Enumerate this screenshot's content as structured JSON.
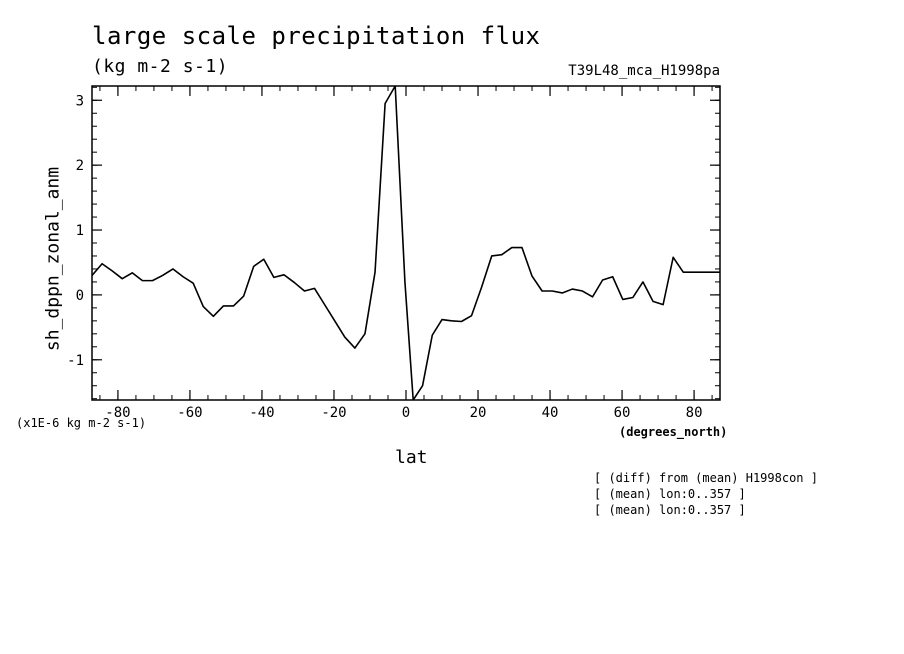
{
  "chart_data": {
    "type": "line",
    "title": "large scale precipitation flux",
    "subtitle": "(kg m-2 s-1)",
    "run_id": "T39L48_mca_H1998pa",
    "xlabel": "lat",
    "x_unit_label": "(degrees_north)",
    "ylabel": "sh_dppn_zonal_anm",
    "y_scale_label": "(x1E-6 kg m-2 s-1)",
    "xlim": [
      -87.2,
      87.2
    ],
    "ylim": [
      -1.62,
      3.22
    ],
    "x_ticks": [
      -80,
      -60,
      -40,
      -20,
      0,
      20,
      40,
      60,
      80
    ],
    "x_tick_labels": [
      "-80",
      "-60",
      "-40",
      "-20",
      "0",
      "20",
      "40",
      "60",
      "80"
    ],
    "y_ticks": [
      -1,
      0,
      1,
      2,
      3
    ],
    "y_tick_labels": [
      "-1",
      "0",
      "1",
      "2",
      "3"
    ],
    "x_minor_step": 5,
    "y_minor_step": 0.2,
    "grid": false,
    "series": [
      {
        "x": [
          -87.2,
          -84.4,
          -81.6,
          -78.8,
          -76.0,
          -73.2,
          -70.4,
          -67.6,
          -64.7,
          -61.9,
          -59.1,
          -56.3,
          -53.5,
          -50.7,
          -47.9,
          -45.1,
          -42.3,
          -39.5,
          -36.7,
          -33.9,
          -31.0,
          -28.2,
          -25.4,
          -22.6,
          -19.8,
          -17.0,
          -14.2,
          -11.4,
          -8.6,
          -5.8,
          -3.0,
          -0.3,
          2.0,
          4.6,
          7.3,
          10.0,
          12.6,
          15.4,
          18.2,
          21.0,
          23.8,
          26.6,
          29.4,
          32.2,
          35.0,
          37.8,
          40.6,
          43.4,
          46.2,
          49.0,
          51.8,
          54.6,
          57.4,
          60.2,
          63.0,
          65.8,
          68.6,
          71.4,
          74.2,
          77.0,
          79.8,
          82.6,
          85.4,
          87.2
        ],
        "values": [
          0.3,
          0.48,
          0.37,
          0.25,
          0.34,
          0.22,
          0.22,
          0.3,
          0.4,
          0.28,
          0.18,
          -0.18,
          -0.33,
          -0.17,
          -0.17,
          -0.02,
          0.44,
          0.55,
          0.27,
          0.31,
          0.19,
          0.06,
          0.1,
          -0.15,
          -0.4,
          -0.65,
          -0.82,
          -0.6,
          0.35,
          2.95,
          3.22,
          0.2,
          -1.62,
          -1.4,
          -0.62,
          -0.38,
          -0.4,
          -0.41,
          -0.32,
          0.12,
          0.6,
          0.62,
          0.73,
          0.73,
          0.29,
          0.06,
          0.06,
          0.03,
          0.09,
          0.06,
          -0.03,
          0.23,
          0.28,
          -0.07,
          -0.04,
          0.2,
          -0.1,
          -0.15,
          0.58,
          0.35,
          0.35,
          0.35,
          0.35,
          0.35
        ]
      }
    ]
  },
  "notes": [
    "[ (diff) from (mean) H1998con ]",
    "[ (mean) lon:0..357 ]",
    "[ (mean) lon:0..357 ]"
  ]
}
